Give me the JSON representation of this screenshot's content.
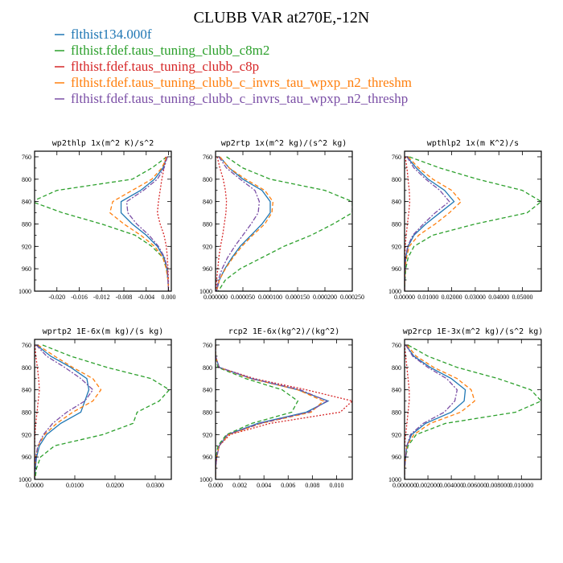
{
  "title": "CLUBB VAR at270E,-12N",
  "legend": [
    {
      "label": "flthist134.000f",
      "color": "#1f77b4"
    },
    {
      "label": "flthist.fdef.taus_tuning_clubb_c8m2",
      "color": "#2ca02c"
    },
    {
      "label": "flthist.fdef.taus_tuning_clubb_c8p",
      "color": "#d62728"
    },
    {
      "label": "flthist.fdef.taus_tuning_clubb_c_invrs_tau_wpxp_n2_threshm",
      "color": "#ff7f0e"
    },
    {
      "label": "flthist.fdef.taus_tuning_clubb_c_invrs_tau_wpxp_n2_threshp",
      "color": "#7b4fa6"
    }
  ],
  "chart_data": [
    {
      "type": "line",
      "title": "wp2thlp  1x(m^2 K)/s^2",
      "xlim": [
        -0.024,
        0.0005
      ],
      "ylim": [
        1000,
        750
      ],
      "xticks": [
        -0.02,
        -0.016,
        -0.012,
        -0.008,
        -0.004,
        0.0
      ],
      "xtick_labels": [
        "-0.020",
        "-0.016",
        "-0.012",
        "-0.008",
        "-0.004",
        "0.000"
      ],
      "yticks": [
        760,
        800,
        840,
        880,
        920,
        960,
        1000
      ],
      "y": [
        760,
        780,
        800,
        820,
        840,
        860,
        880,
        900,
        920,
        940,
        960,
        980,
        1000
      ],
      "series": [
        {
          "color": "#1f77b4",
          "dash": "",
          "values": [
            -0.0003,
            -0.001,
            -0.0025,
            -0.005,
            -0.0085,
            -0.0085,
            -0.0065,
            -0.004,
            -0.002,
            -0.0008,
            -0.0003,
            -0.0001,
            0
          ]
        },
        {
          "color": "#2ca02c",
          "dash": "5,3",
          "values": [
            -0.0003,
            -0.003,
            -0.0065,
            -0.02,
            -0.0245,
            -0.019,
            -0.012,
            -0.006,
            -0.003,
            -0.001,
            -0.0004,
            -0.0001,
            0
          ]
        },
        {
          "color": "#d62728",
          "dash": "2,2",
          "values": [
            -0.0005,
            -0.0008,
            -0.0012,
            -0.0015,
            -0.0018,
            -0.002,
            -0.0015,
            -0.0008,
            -0.0004,
            -0.0002,
            -0.0001,
            0,
            0
          ]
        },
        {
          "color": "#ff7f0e",
          "dash": "5,3",
          "values": [
            -0.0003,
            -0.0012,
            -0.003,
            -0.0065,
            -0.01,
            -0.0105,
            -0.008,
            -0.005,
            -0.0025,
            -0.001,
            -0.0004,
            -0.0001,
            0
          ]
        },
        {
          "color": "#7b4fa6",
          "dash": "6,2,2,2",
          "values": [
            -0.0002,
            -0.0008,
            -0.002,
            -0.0045,
            -0.0075,
            -0.0073,
            -0.0057,
            -0.0035,
            -0.0018,
            -0.0007,
            -0.0002,
            -0.0001,
            0
          ]
        }
      ]
    },
    {
      "type": "line",
      "title": "wp2rtp  1x(m^2 kg)/(s^2 kg)",
      "xlim": [
        0,
        0.00025
      ],
      "ylim": [
        1000,
        750
      ],
      "xticks": [
        0,
        5e-05,
        0.0001,
        0.00015,
        0.0002,
        0.00025
      ],
      "xtick_labels": [
        "0.000000",
        "0.000050",
        "0.000100",
        "0.000150",
        "0.000200",
        "0.000250"
      ],
      "yticks": [
        760,
        800,
        840,
        880,
        920,
        960,
        1000
      ],
      "y": [
        760,
        780,
        800,
        820,
        840,
        860,
        880,
        900,
        920,
        940,
        960,
        980,
        1000
      ],
      "series": [
        {
          "color": "#1f77b4",
          "dash": "",
          "values": [
            8e-06,
            2.5e-05,
            5e-05,
            8.5e-05,
            0.0001,
            0.0001,
            8.5e-05,
            6.5e-05,
            4.5e-05,
            3e-05,
            1.7e-05,
            7e-06,
            2e-06
          ]
        },
        {
          "color": "#2ca02c",
          "dash": "5,3",
          "values": [
            2e-05,
            5e-05,
            0.0001,
            0.0002,
            0.00025,
            0.00025,
            0.000215,
            0.000175,
            0.000125,
            8.5e-05,
            4.5e-05,
            1.8e-05,
            5e-06
          ]
        },
        {
          "color": "#d62728",
          "dash": "2,2",
          "values": [
            3e-06,
            8e-06,
            1.4e-05,
            1.8e-05,
            2e-05,
            1.9e-05,
            1.6e-05,
            1.3e-05,
            9e-06,
            6e-06,
            4e-06,
            2e-06,
            1e-06
          ]
        },
        {
          "color": "#ff7f0e",
          "dash": "5,3",
          "values": [
            8e-06,
            2.5e-05,
            5.5e-05,
            9e-05,
            0.000105,
            0.000103,
            9e-05,
            6.8e-05,
            4.8e-05,
            3.2e-05,
            1.8e-05,
            7e-06,
            2e-06
          ]
        },
        {
          "color": "#7b4fa6",
          "dash": "6,2,2,2",
          "values": [
            6e-06,
            2e-05,
            4.5e-05,
            7.2e-05,
            8e-05,
            7.8e-05,
            6.5e-05,
            5e-05,
            3.5e-05,
            2.2e-05,
            1.2e-05,
            5e-06,
            2e-06
          ]
        }
      ]
    },
    {
      "type": "line",
      "title": "wpthlp2  1x(m K^2)/s",
      "xlim": [
        0,
        0.058
      ],
      "ylim": [
        1000,
        750
      ],
      "xticks": [
        0,
        0.01,
        0.02,
        0.03,
        0.04,
        0.05
      ],
      "xtick_labels": [
        "0.00000",
        "0.01000",
        "0.02000",
        "0.03000",
        "0.04000",
        "0.05000"
      ],
      "yticks": [
        760,
        800,
        840,
        880,
        920,
        960,
        1000
      ],
      "y": [
        760,
        780,
        800,
        820,
        840,
        860,
        880,
        900,
        920,
        940,
        960,
        980,
        1000
      ],
      "series": [
        {
          "color": "#1f77b4",
          "dash": "",
          "values": [
            0.001,
            0.005,
            0.01,
            0.017,
            0.021,
            0.015,
            0.009,
            0.004,
            0.0015,
            0.0005,
            0.0002,
            0.0001,
            0
          ]
        },
        {
          "color": "#2ca02c",
          "dash": "5,3",
          "values": [
            0.002,
            0.015,
            0.031,
            0.05,
            0.058,
            0.052,
            0.03,
            0.012,
            0.004,
            0.0015,
            0.0005,
            0.0002,
            0
          ]
        },
        {
          "color": "#d62728",
          "dash": "2,2",
          "values": [
            0.0003,
            0.001,
            0.0015,
            0.002,
            0.0022,
            0.0018,
            0.0012,
            0.0007,
            0.0003,
            0.0001,
            5e-05,
            0,
            0
          ]
        },
        {
          "color": "#ff7f0e",
          "dash": "5,3",
          "values": [
            0.0015,
            0.006,
            0.012,
            0.02,
            0.024,
            0.019,
            0.013,
            0.006,
            0.002,
            0.0008,
            0.0003,
            0.0001,
            0
          ]
        },
        {
          "color": "#7b4fa6",
          "dash": "6,2,2,2",
          "values": [
            0.001,
            0.004,
            0.009,
            0.015,
            0.019,
            0.013,
            0.008,
            0.0035,
            0.0013,
            0.0004,
            0.0002,
            0.0001,
            0
          ]
        }
      ]
    },
    {
      "type": "line",
      "title": "wprtp2  1E-6x(m kg)/(s kg)",
      "xlim": [
        0,
        0.034
      ],
      "ylim": [
        1000,
        750
      ],
      "xticks": [
        0,
        0.01,
        0.02,
        0.03
      ],
      "xtick_labels": [
        "0.0000",
        "0.0100",
        "0.0200",
        "0.0300"
      ],
      "yticks": [
        760,
        800,
        840,
        880,
        920,
        960,
        1000
      ],
      "y": [
        760,
        780,
        800,
        820,
        840,
        860,
        880,
        900,
        920,
        940,
        960,
        980,
        1000
      ],
      "series": [
        {
          "color": "#1f77b4",
          "dash": "",
          "values": [
            0.0005,
            0.004,
            0.009,
            0.013,
            0.0135,
            0.0125,
            0.0115,
            0.0065,
            0.003,
            0.0012,
            0.0005,
            0.0002,
            0
          ]
        },
        {
          "color": "#2ca02c",
          "dash": "5,3",
          "values": [
            0.002,
            0.009,
            0.018,
            0.029,
            0.0335,
            0.031,
            0.0255,
            0.0245,
            0.017,
            0.005,
            0.0015,
            0.0005,
            0.0001
          ]
        },
        {
          "color": "#d62728",
          "dash": "2,2",
          "values": [
            0.0001,
            0.0003,
            0.0007,
            0.001,
            0.0012,
            0.0009,
            0.0006,
            0.0003,
            0.0001,
            0,
            0,
            0,
            0
          ]
        },
        {
          "color": "#ff7f0e",
          "dash": "5,3",
          "values": [
            0.0008,
            0.005,
            0.0095,
            0.0145,
            0.0165,
            0.0145,
            0.0095,
            0.0055,
            0.0025,
            0.0009,
            0.0003,
            0.0001,
            0
          ]
        },
        {
          "color": "#7b4fa6",
          "dash": "6,2,2,2",
          "values": [
            0.0004,
            0.003,
            0.0075,
            0.0115,
            0.0145,
            0.0125,
            0.008,
            0.0045,
            0.0022,
            0.0008,
            0.0003,
            0.0001,
            0
          ]
        }
      ]
    },
    {
      "type": "line",
      "title": "rcp2  1E-6x(kg^2)/(kg^2)",
      "xlim": [
        0,
        0.0113
      ],
      "ylim": [
        1000,
        750
      ],
      "xticks": [
        0,
        0.002,
        0.004,
        0.006,
        0.008,
        0.01
      ],
      "xtick_labels": [
        "0.000",
        "0.002",
        "0.004",
        "0.006",
        "0.008",
        "0.010"
      ],
      "yticks": [
        760,
        800,
        840,
        880,
        920,
        960,
        1000
      ],
      "y": [
        760,
        780,
        800,
        820,
        840,
        860,
        880,
        900,
        920,
        940,
        960,
        980,
        1000
      ],
      "series": [
        {
          "color": "#1f77b4",
          "dash": "",
          "values": [
            0,
            0,
            0.0003,
            0.003,
            0.0068,
            0.0093,
            0.0075,
            0.0035,
            0.001,
            0.0003,
            0.0001,
            0,
            0
          ]
        },
        {
          "color": "#2ca02c",
          "dash": "5,3",
          "values": [
            0,
            0,
            0.0002,
            0.0025,
            0.0055,
            0.0068,
            0.0063,
            0.003,
            0.0009,
            0.0002,
            5e-05,
            0,
            0
          ]
        },
        {
          "color": "#d62728",
          "dash": "2,2",
          "values": [
            0,
            0,
            0.0003,
            0.0032,
            0.0075,
            0.0113,
            0.0103,
            0.0045,
            0.0012,
            0.0003,
            0.0001,
            0,
            0
          ]
        },
        {
          "color": "#ff7f0e",
          "dash": "5,3",
          "values": [
            0,
            0,
            0.0003,
            0.0029,
            0.0068,
            0.0089,
            0.0079,
            0.0038,
            0.0011,
            0.0003,
            0.0001,
            0,
            0
          ]
        },
        {
          "color": "#7b4fa6",
          "dash": "6,2,2,2",
          "values": [
            0,
            0,
            0.0003,
            0.003,
            0.007,
            0.0092,
            0.0077,
            0.0037,
            0.001,
            0.0003,
            0.0001,
            0,
            0
          ]
        }
      ]
    },
    {
      "type": "line",
      "title": "wp2rcp  1E-3x(m^2 kg)/(s^2 kg)",
      "xlim": [
        0,
        0.0117
      ],
      "ylim": [
        1000,
        750
      ],
      "xticks": [
        0,
        0.002,
        0.004,
        0.006,
        0.008,
        0.01
      ],
      "xtick_labels": [
        "0.000000",
        "0.002000",
        "0.004000",
        "0.006000",
        "0.008000",
        "0.010000"
      ],
      "yticks": [
        760,
        800,
        840,
        880,
        920,
        960,
        1000
      ],
      "y": [
        760,
        780,
        800,
        820,
        840,
        860,
        880,
        900,
        920,
        940,
        960,
        980,
        1000
      ],
      "series": [
        {
          "color": "#1f77b4",
          "dash": "",
          "values": [
            0.0001,
            0.0008,
            0.0022,
            0.004,
            0.0052,
            0.0051,
            0.004,
            0.0018,
            0.0006,
            0.0002,
            0.0001,
            0,
            0
          ]
        },
        {
          "color": "#2ca02c",
          "dash": "5,3",
          "values": [
            0.0003,
            0.002,
            0.0045,
            0.008,
            0.0108,
            0.0117,
            0.0095,
            0.0035,
            0.001,
            0.0003,
            0.0001,
            0,
            0
          ]
        },
        {
          "color": "#d62728",
          "dash": "2,2",
          "values": [
            0,
            0.0001,
            0.0002,
            0.0003,
            0.0004,
            0.0004,
            0.0003,
            0.0002,
            0.0001,
            0,
            0,
            0,
            0
          ]
        },
        {
          "color": "#ff7f0e",
          "dash": "5,3",
          "values": [
            0.0002,
            0.001,
            0.0025,
            0.0045,
            0.0057,
            0.006,
            0.0048,
            0.0022,
            0.0008,
            0.0002,
            0.0001,
            0,
            0
          ]
        },
        {
          "color": "#7b4fa6",
          "dash": "6,2,2,2",
          "values": [
            0.0001,
            0.0007,
            0.002,
            0.0036,
            0.0045,
            0.0043,
            0.0034,
            0.0016,
            0.0005,
            0.0002,
            0.0001,
            0,
            0
          ]
        }
      ]
    }
  ]
}
